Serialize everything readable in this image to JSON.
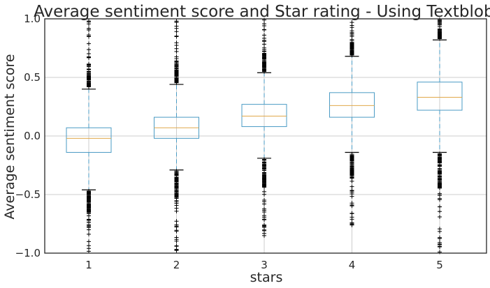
{
  "chart_data": {
    "type": "box",
    "title": "Average sentiment score and Star rating - Using Textblob.",
    "xlabel": "stars",
    "ylabel": "Average sentiment score",
    "ylim": [
      -1.0,
      1.0
    ],
    "yticks": [
      -1.0,
      -0.5,
      0.0,
      0.5,
      1.0
    ],
    "ytick_labels": [
      "−1.0",
      "−0.5",
      "0.0",
      "0.5",
      "1.0"
    ],
    "grid": true,
    "categories": [
      "1",
      "2",
      "3",
      "4",
      "5"
    ],
    "boxes": [
      {
        "label": "1",
        "whisker_low": -0.46,
        "q1": -0.14,
        "median": -0.02,
        "q3": 0.07,
        "whisker_high": 0.4,
        "outliers_low_range": [
          -1.0,
          -0.47
        ],
        "outliers_high_range": [
          0.41,
          1.0
        ]
      },
      {
        "label": "2",
        "whisker_low": -0.29,
        "q1": -0.02,
        "median": 0.07,
        "q3": 0.16,
        "whisker_high": 0.44,
        "outliers_low_range": [
          -0.98,
          -0.3
        ],
        "outliers_high_range": [
          0.45,
          1.0
        ]
      },
      {
        "label": "3",
        "whisker_low": -0.19,
        "q1": 0.08,
        "median": 0.17,
        "q3": 0.27,
        "whisker_high": 0.54,
        "outliers_low_range": [
          -0.88,
          -0.2
        ],
        "outliers_high_range": [
          0.55,
          1.0
        ]
      },
      {
        "label": "4",
        "whisker_low": -0.14,
        "q1": 0.16,
        "median": 0.26,
        "q3": 0.37,
        "whisker_high": 0.68,
        "outliers_low_range": [
          -0.77,
          -0.15
        ],
        "outliers_high_range": [
          0.69,
          1.0
        ]
      },
      {
        "label": "5",
        "whisker_low": -0.14,
        "q1": 0.22,
        "median": 0.33,
        "q3": 0.46,
        "whisker_high": 0.82,
        "outliers_low_range": [
          -1.0,
          -0.15
        ],
        "outliers_high_range": [
          0.83,
          1.0
        ]
      }
    ],
    "colors": {
      "box": "#4a9bc4",
      "median": "#e0a84a",
      "whisker": "#4a9bc4",
      "cap": "#000000",
      "outlier": "#000000",
      "grid": "#cccccc",
      "frame": "#262626"
    }
  }
}
